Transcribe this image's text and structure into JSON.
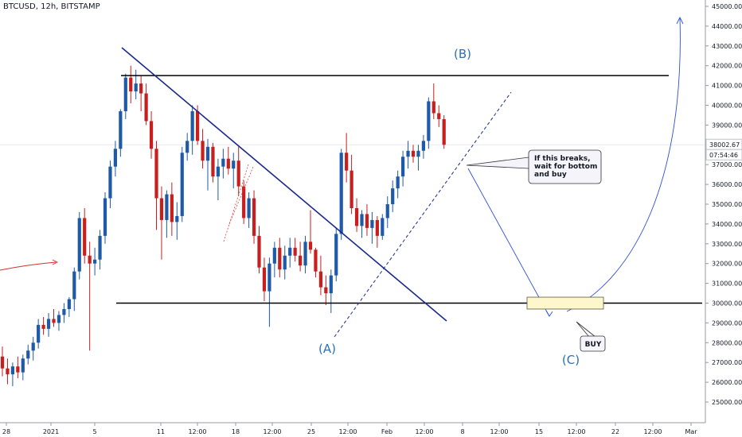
{
  "header": {
    "title": "BTCUSD, 12h, BITSTAMP"
  },
  "colors": {
    "up": "#1e5aa8",
    "down": "#c81e1e",
    "trendline": "#1a2a8c",
    "level": "#000000",
    "wave_label": "#2d6fb8",
    "projection": "#2e4fd6",
    "buy_zone": "#fff7cc"
  },
  "chart_data": {
    "type": "candlestick",
    "title": "BTCUSD, 12h, BITSTAMP",
    "ylim": [
      24800,
      45300
    ],
    "y_ticks": [
      "25000.00",
      "26000.00",
      "27000.00",
      "28000.00",
      "29000.00",
      "30000.00",
      "31000.00",
      "32000.00",
      "33000.00",
      "34000.00",
      "35000.00",
      "36000.00",
      "37000.00",
      "38000.00",
      "39000.00",
      "40000.00",
      "41000.00",
      "42000.00",
      "43000.00",
      "44000.00",
      "45000.00"
    ],
    "x_ticks": [
      "28",
      "2021",
      "5",
      "11",
      "12:00",
      "18",
      "12:00",
      "25",
      "12:00",
      "Feb",
      "12:00",
      "8",
      "12:00",
      "15",
      "12:00",
      "22",
      "12:00",
      "Mar"
    ],
    "last_price": "38002.67",
    "countdown": "07:54:46",
    "candles": [
      [
        27300,
        27800,
        26300,
        26700
      ],
      [
        26700,
        27200,
        25900,
        26400
      ],
      [
        26400,
        27000,
        25800,
        26800
      ],
      [
        26800,
        27300,
        26200,
        26500
      ],
      [
        26500,
        27400,
        26100,
        27200
      ],
      [
        27200,
        27900,
        26900,
        27600
      ],
      [
        27600,
        28300,
        27100,
        28000
      ],
      [
        28000,
        29200,
        27700,
        28900
      ],
      [
        28900,
        29300,
        28400,
        28700
      ],
      [
        28700,
        29500,
        28300,
        29200
      ],
      [
        29200,
        29700,
        28800,
        29000
      ],
      [
        29000,
        29600,
        28600,
        29400
      ],
      [
        29400,
        30000,
        29000,
        29700
      ],
      [
        29700,
        30300,
        29300,
        30200
      ],
      [
        30200,
        31800,
        29600,
        31600
      ],
      [
        31600,
        34600,
        31200,
        34300
      ],
      [
        34300,
        34800,
        32000,
        32400
      ],
      [
        32400,
        33100,
        27600,
        32000
      ],
      [
        32000,
        32800,
        31400,
        32200
      ],
      [
        32200,
        33700,
        31700,
        33400
      ],
      [
        33400,
        35600,
        33000,
        35300
      ],
      [
        35300,
        37200,
        34800,
        36900
      ],
      [
        36900,
        38200,
        36400,
        37800
      ],
      [
        37800,
        39800,
        37400,
        39700
      ],
      [
        39700,
        41600,
        39300,
        41400
      ],
      [
        41400,
        42000,
        40100,
        40700
      ],
      [
        40700,
        41800,
        40300,
        41100
      ],
      [
        41100,
        41500,
        39700,
        40600
      ],
      [
        40600,
        41100,
        39000,
        39200
      ],
      [
        39200,
        39700,
        37300,
        37800
      ],
      [
        37800,
        38200,
        33700,
        35300
      ],
      [
        35300,
        35900,
        32200,
        34200
      ],
      [
        34200,
        35700,
        33300,
        35500
      ],
      [
        35500,
        36100,
        33400,
        34100
      ],
      [
        34100,
        35100,
        33200,
        34400
      ],
      [
        34400,
        37900,
        34100,
        37600
      ],
      [
        37600,
        38600,
        37200,
        38200
      ],
      [
        38200,
        40000,
        37500,
        39700
      ],
      [
        39700,
        40000,
        38000,
        38200
      ],
      [
        38200,
        38800,
        36800,
        37200
      ],
      [
        37200,
        38300,
        35700,
        37900
      ],
      [
        37900,
        38100,
        36100,
        36400
      ],
      [
        36400,
        37300,
        35200,
        36900
      ],
      [
        36900,
        37800,
        36300,
        37300
      ],
      [
        37300,
        37900,
        36500,
        36800
      ],
      [
        36800,
        37600,
        35800,
        37200
      ],
      [
        37200,
        37900,
        35400,
        35900
      ],
      [
        35900,
        36200,
        34000,
        34300
      ],
      [
        34300,
        35600,
        33800,
        35300
      ],
      [
        35300,
        35700,
        33000,
        33400
      ],
      [
        33400,
        33900,
        31500,
        31800
      ],
      [
        31800,
        32300,
        30100,
        30600
      ],
      [
        30600,
        32300,
        28800,
        32000
      ],
      [
        32000,
        33100,
        31300,
        32800
      ],
      [
        32800,
        33300,
        31300,
        31700
      ],
      [
        31700,
        32900,
        31200,
        32400
      ],
      [
        32400,
        33300,
        31800,
        32800
      ],
      [
        32800,
        33300,
        32100,
        32400
      ],
      [
        32400,
        33100,
        31600,
        31900
      ],
      [
        31900,
        33400,
        31500,
        33100
      ],
      [
        33100,
        34700,
        32500,
        32700
      ],
      [
        32700,
        32800,
        31300,
        31600
      ],
      [
        31600,
        32400,
        30400,
        30800
      ],
      [
        30800,
        31400,
        29900,
        30500
      ],
      [
        30500,
        31700,
        29500,
        31400
      ],
      [
        31400,
        33800,
        31100,
        33500
      ],
      [
        33500,
        37800,
        33200,
        37600
      ],
      [
        37600,
        38600,
        36100,
        36700
      ],
      [
        36700,
        37500,
        34500,
        34800
      ],
      [
        34800,
        35300,
        33600,
        33900
      ],
      [
        33900,
        34700,
        33300,
        34500
      ],
      [
        34500,
        35000,
        33400,
        33800
      ],
      [
        33800,
        34600,
        33000,
        34200
      ],
      [
        34200,
        34400,
        32800,
        33400
      ],
      [
        33400,
        34500,
        33200,
        34300
      ],
      [
        34300,
        35400,
        33800,
        35000
      ],
      [
        35000,
        36200,
        34600,
        35800
      ],
      [
        35800,
        36700,
        35300,
        36400
      ],
      [
        36400,
        37700,
        35900,
        37400
      ],
      [
        37400,
        38200,
        36800,
        37700
      ],
      [
        37700,
        38000,
        37100,
        37400
      ],
      [
        37400,
        38000,
        36700,
        37700
      ],
      [
        37700,
        38500,
        37300,
        38200
      ],
      [
        38200,
        40400,
        37800,
        40200
      ],
      [
        40200,
        41100,
        39300,
        39600
      ],
      [
        39600,
        40000,
        38900,
        39300
      ],
      [
        39300,
        39500,
        37800,
        38002.67
      ]
    ],
    "annotations": {
      "wave_labels": [
        "(A)",
        "(B)",
        "(C)"
      ],
      "callout_text": [
        "If this breaks,",
        "wait for bottom",
        "and buy"
      ],
      "buy_label": "BUY",
      "resistance": 41500,
      "support": 30000,
      "buy_zone": [
        29700,
        30300
      ]
    }
  }
}
